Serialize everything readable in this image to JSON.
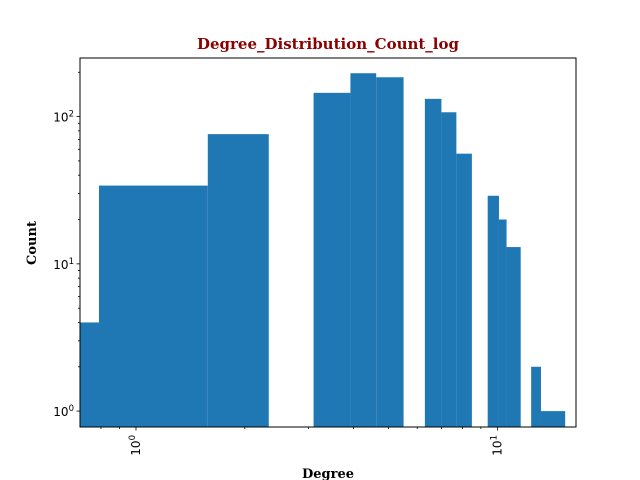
{
  "chart_data": {
    "type": "bar",
    "title": "Degree_Distribution_Count_log",
    "xlabel": "Degree",
    "ylabel": "Count",
    "xscale": "log",
    "yscale": "log",
    "xlim": [
      0.7,
      16.5
    ],
    "ylim": [
      0.78,
      250
    ],
    "grid": false,
    "bar_color": "#1f77b4",
    "title_color": "#8b0000",
    "x_tick_labels": [
      {
        "value": 1,
        "base": "10",
        "exp": "0"
      },
      {
        "value": 10,
        "base": "10",
        "exp": "1"
      }
    ],
    "y_tick_labels": [
      {
        "value": 1,
        "base": "10",
        "exp": "0"
      },
      {
        "value": 10,
        "base": "10",
        "exp": "1"
      },
      {
        "value": 100,
        "base": "10",
        "exp": "2"
      }
    ],
    "bars": [
      {
        "x_start": 0.6,
        "x_end": 0.79,
        "count": 4
      },
      {
        "x_start": 0.79,
        "x_end": 1.58,
        "count": 34
      },
      {
        "x_start": 1.58,
        "x_end": 2.33,
        "count": 76
      },
      {
        "x_start": 3.1,
        "x_end": 3.92,
        "count": 145
      },
      {
        "x_start": 3.92,
        "x_end": 4.62,
        "count": 197
      },
      {
        "x_start": 4.62,
        "x_end": 5.5,
        "count": 185
      },
      {
        "x_start": 6.3,
        "x_end": 7.0,
        "count": 132
      },
      {
        "x_start": 7.0,
        "x_end": 7.7,
        "count": 107
      },
      {
        "x_start": 7.7,
        "x_end": 8.5,
        "count": 56
      },
      {
        "x_start": 9.4,
        "x_end": 10.1,
        "count": 29
      },
      {
        "x_start": 10.1,
        "x_end": 10.6,
        "count": 20
      },
      {
        "x_start": 10.6,
        "x_end": 11.6,
        "count": 13
      },
      {
        "x_start": 12.4,
        "x_end": 13.2,
        "count": 2
      },
      {
        "x_start": 13.2,
        "x_end": 15.4,
        "count": 1
      }
    ]
  }
}
